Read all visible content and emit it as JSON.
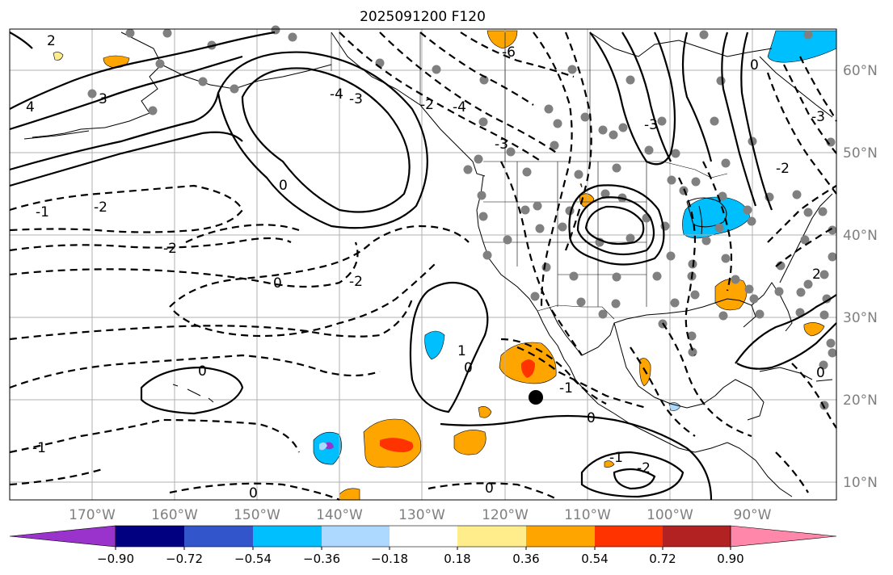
{
  "title": "2025091200 F120",
  "lon_labels": [
    "170°W",
    "160°W",
    "150°W",
    "140°W",
    "130°W",
    "120°W",
    "110°W",
    "100°W",
    "90°W"
  ],
  "lat_labels": [
    "60°N",
    "50°N",
    "40°N",
    "30°N",
    "20°N",
    "10°N"
  ],
  "colorbar": {
    "tick_labels": [
      "−0.90",
      "−0.72",
      "−0.54",
      "−0.36",
      "−0.18",
      "0.18",
      "0.36",
      "0.54",
      "0.72",
      "0.90"
    ],
    "colors": [
      "#9933cc",
      "#000080",
      "#3355cc",
      "#00bfff",
      "#add8ff",
      "#ffffff",
      "#ffec8b",
      "#ffa500",
      "#ff3300",
      "#b22222",
      "#ff88aa"
    ]
  },
  "contour_labels": [
    "2",
    "4",
    "3",
    "-1",
    "-2",
    "-2",
    "0",
    "-4",
    "-3",
    "-2",
    "-4",
    "-6",
    "-3",
    "-3",
    "0",
    "-3",
    "-2",
    "0",
    "-2",
    "0",
    "1",
    "0",
    "-1",
    "0",
    "-1",
    "-2",
    "0",
    "-1",
    "2",
    "0",
    "0"
  ],
  "marker": {
    "lon": -116.2,
    "lat": 20.3
  },
  "colors": {
    "grid": "#b0b0b0",
    "station": "#808080",
    "contour": "#000000"
  }
}
